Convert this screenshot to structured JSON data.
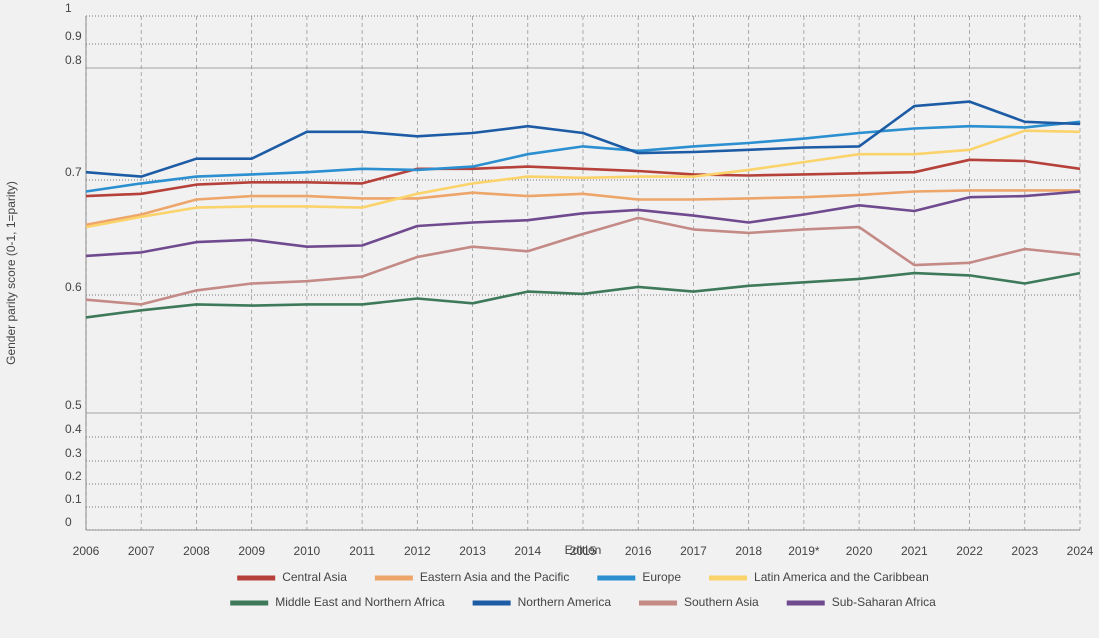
{
  "chart_data": {
    "type": "line",
    "y_label": "Gender parity score (0-1, 1=parity)",
    "x_label": "Edition",
    "categories": [
      "2006",
      "2007",
      "2008",
      "2009",
      "2010",
      "2011",
      "2012",
      "2013",
      "2014",
      "2015",
      "2016",
      "2017",
      "2018",
      "2019*",
      "2020",
      "2021",
      "2022",
      "2023",
      "2024"
    ],
    "ylim": [
      0,
      1
    ],
    "yticks": [
      0,
      0.1,
      0.2,
      0.3,
      0.4,
      0.5,
      0.6,
      0.7,
      0.8,
      0.9,
      1
    ],
    "grid": true,
    "legend": "bottom",
    "series": [
      {
        "name": "Central Asia",
        "color": "#b5413a",
        "values": [
          0.686,
          0.688,
          0.696,
          0.698,
          0.698,
          0.697,
          0.71,
          0.71,
          0.712,
          0.71,
          0.708,
          0.705,
          0.704,
          0.705,
          0.706,
          0.707,
          0.718,
          0.717,
          0.71
        ]
      },
      {
        "name": "Eastern Asia and the Pacific",
        "color": "#eda56a",
        "values": [
          0.661,
          0.67,
          0.683,
          0.686,
          0.686,
          0.684,
          0.684,
          0.689,
          0.686,
          0.688,
          0.683,
          0.683,
          0.684,
          0.685,
          0.687,
          0.69,
          0.691,
          0.691,
          0.691
        ]
      },
      {
        "name": "Europe",
        "color": "#2b8fd0",
        "values": [
          0.69,
          0.697,
          0.703,
          0.705,
          0.707,
          0.71,
          0.709,
          0.712,
          0.723,
          0.73,
          0.726,
          0.73,
          0.733,
          0.737,
          0.742,
          0.746,
          0.748,
          0.747,
          0.752
        ]
      },
      {
        "name": "Latin America and the Caribbean",
        "color": "#fbd36b",
        "values": [
          0.659,
          0.668,
          0.676,
          0.677,
          0.677,
          0.676,
          0.688,
          0.697,
          0.703,
          0.702,
          0.703,
          0.703,
          0.709,
          0.716,
          0.723,
          0.723,
          0.727,
          0.744,
          0.743
        ]
      },
      {
        "name": "Middle East and Northern Africa",
        "color": "#3e7a5a",
        "values": [
          0.581,
          0.587,
          0.592,
          0.591,
          0.592,
          0.592,
          0.597,
          0.593,
          0.603,
          0.601,
          0.607,
          0.603,
          0.608,
          0.611,
          0.614,
          0.619,
          0.617,
          0.61,
          0.619
        ]
      },
      {
        "name": "Northern America",
        "color": "#1d5ca5",
        "values": [
          0.707,
          0.703,
          0.719,
          0.719,
          0.743,
          0.743,
          0.739,
          0.742,
          0.748,
          0.742,
          0.724,
          0.725,
          0.727,
          0.729,
          0.73,
          0.766,
          0.77,
          0.752,
          0.75
        ]
      },
      {
        "name": "Southern Asia",
        "color": "#c48a86",
        "values": [
          0.596,
          0.592,
          0.604,
          0.61,
          0.612,
          0.616,
          0.633,
          0.642,
          0.638,
          0.653,
          0.667,
          0.657,
          0.654,
          0.657,
          0.659,
          0.626,
          0.628,
          0.64,
          0.635
        ]
      },
      {
        "name": "Sub-Saharan Africa",
        "color": "#704a8e",
        "values": [
          0.634,
          0.637,
          0.646,
          0.648,
          0.642,
          0.643,
          0.66,
          0.663,
          0.665,
          0.671,
          0.674,
          0.669,
          0.663,
          0.67,
          0.678,
          0.673,
          0.685,
          0.686,
          0.69
        ]
      }
    ]
  }
}
